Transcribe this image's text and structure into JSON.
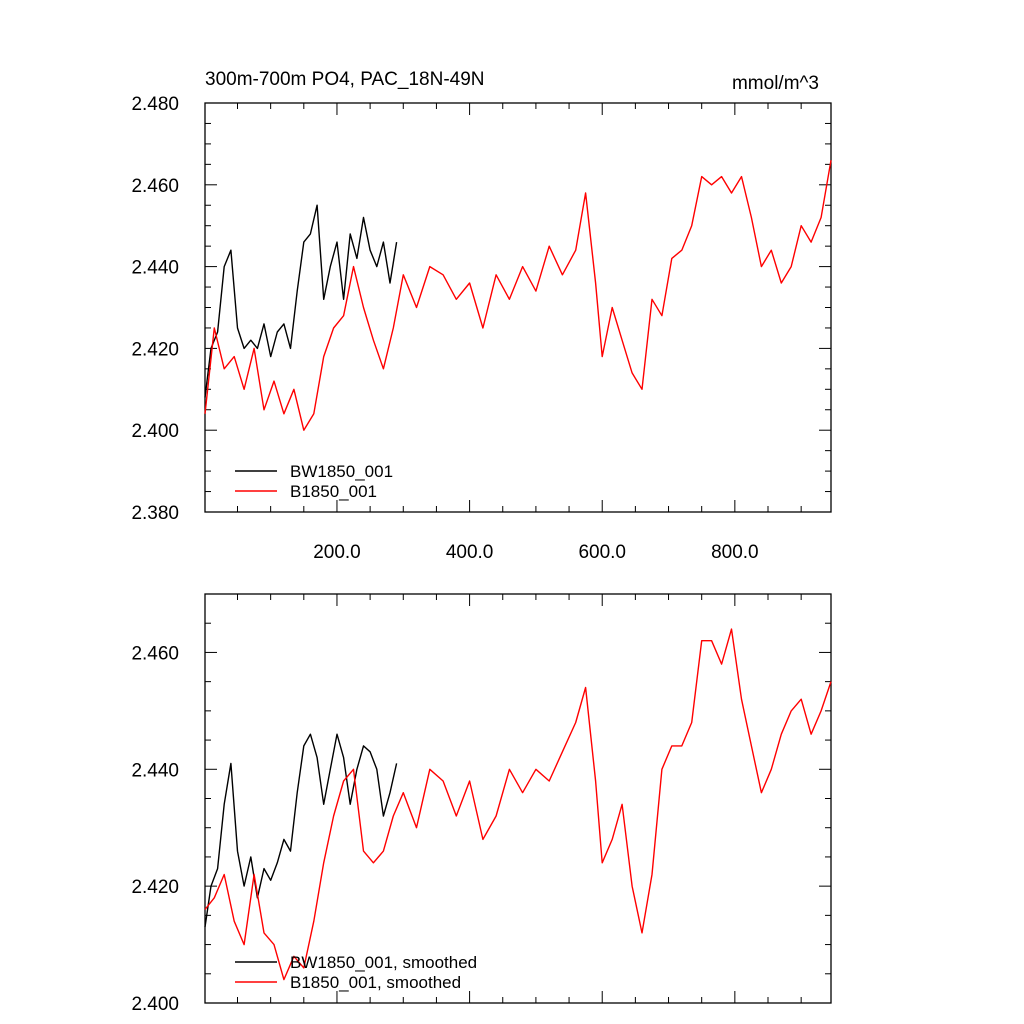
{
  "chart_data": [
    {
      "type": "line",
      "title": "300m-700m PO4, PAC_18N-49N",
      "units": "mmol/m^3",
      "xlim": [
        1,
        945
      ],
      "ylim": [
        2.38,
        2.48
      ],
      "x_ticks": [
        200,
        400,
        600,
        800
      ],
      "x_tick_labels": [
        "200.0",
        "400.0",
        "600.0",
        "800.0"
      ],
      "y_ticks": [
        2.38,
        2.4,
        2.42,
        2.44,
        2.46,
        2.48
      ],
      "y_tick_labels": [
        "2.380",
        "2.400",
        "2.420",
        "2.440",
        "2.460",
        "2.480"
      ],
      "legend_position": "bottom-left",
      "series": [
        {
          "name": "BW1850_001",
          "color": "#000000",
          "x": [
            1,
            10,
            20,
            30,
            40,
            50,
            60,
            70,
            80,
            90,
            100,
            110,
            120,
            130,
            140,
            150,
            160,
            170,
            180,
            190,
            200,
            210,
            220,
            230,
            240,
            250,
            260,
            270,
            280,
            290
          ],
          "y": [
            2.408,
            2.42,
            2.424,
            2.44,
            2.444,
            2.425,
            2.42,
            2.422,
            2.42,
            2.426,
            2.418,
            2.424,
            2.426,
            2.42,
            2.434,
            2.446,
            2.448,
            2.455,
            2.432,
            2.44,
            2.446,
            2.432,
            2.448,
            2.442,
            2.452,
            2.444,
            2.44,
            2.446,
            2.436,
            2.446
          ]
        },
        {
          "name": "B1850_001",
          "color": "#ff0000",
          "x": [
            1,
            15,
            30,
            45,
            60,
            75,
            90,
            105,
            120,
            135,
            150,
            165,
            180,
            195,
            210,
            225,
            240,
            255,
            270,
            285,
            300,
            320,
            340,
            360,
            380,
            400,
            420,
            440,
            460,
            480,
            500,
            520,
            540,
            560,
            575,
            590,
            600,
            615,
            630,
            645,
            660,
            675,
            690,
            705,
            720,
            735,
            750,
            765,
            780,
            795,
            810,
            825,
            840,
            855,
            870,
            885,
            900,
            915,
            930,
            945
          ],
          "y": [
            2.404,
            2.425,
            2.415,
            2.418,
            2.41,
            2.42,
            2.405,
            2.412,
            2.404,
            2.41,
            2.4,
            2.404,
            2.418,
            2.425,
            2.428,
            2.44,
            2.43,
            2.422,
            2.415,
            2.425,
            2.438,
            2.43,
            2.44,
            2.438,
            2.432,
            2.436,
            2.425,
            2.438,
            2.432,
            2.44,
            2.434,
            2.445,
            2.438,
            2.444,
            2.458,
            2.436,
            2.418,
            2.43,
            2.422,
            2.414,
            2.41,
            2.432,
            2.428,
            2.442,
            2.444,
            2.45,
            2.462,
            2.46,
            2.462,
            2.458,
            2.462,
            2.452,
            2.44,
            2.444,
            2.436,
            2.44,
            2.45,
            2.446,
            2.452,
            2.466
          ]
        }
      ]
    },
    {
      "type": "line",
      "title": "",
      "xlim": [
        1,
        945
      ],
      "ylim": [
        2.4,
        2.47
      ],
      "x_ticks": [
        200,
        400,
        600,
        800
      ],
      "x_tick_labels": [],
      "y_ticks": [
        2.4,
        2.42,
        2.44,
        2.46
      ],
      "y_tick_labels": [
        "2.400",
        "2.420",
        "2.440",
        "2.460"
      ],
      "legend_position": "bottom-left",
      "series": [
        {
          "name": "BW1850_001, smoothed",
          "color": "#000000",
          "x": [
            1,
            10,
            20,
            30,
            40,
            50,
            60,
            70,
            80,
            90,
            100,
            110,
            120,
            130,
            140,
            150,
            160,
            170,
            180,
            190,
            200,
            210,
            220,
            230,
            240,
            250,
            260,
            270,
            280,
            290
          ],
          "y": [
            2.413,
            2.42,
            2.423,
            2.434,
            2.441,
            2.426,
            2.42,
            2.425,
            2.418,
            2.423,
            2.421,
            2.424,
            2.428,
            2.426,
            2.436,
            2.444,
            2.446,
            2.442,
            2.434,
            2.44,
            2.446,
            2.442,
            2.434,
            2.44,
            2.444,
            2.443,
            2.44,
            2.432,
            2.436,
            2.441
          ]
        },
        {
          "name": "B1850_001, smoothed",
          "color": "#ff0000",
          "x": [
            1,
            15,
            30,
            45,
            60,
            75,
            90,
            105,
            120,
            135,
            150,
            165,
            180,
            195,
            210,
            225,
            240,
            255,
            270,
            285,
            300,
            320,
            340,
            360,
            380,
            400,
            420,
            440,
            460,
            480,
            500,
            520,
            540,
            560,
            575,
            590,
            600,
            615,
            630,
            645,
            660,
            675,
            690,
            705,
            720,
            735,
            750,
            765,
            780,
            795,
            810,
            825,
            840,
            855,
            870,
            885,
            900,
            915,
            930,
            945
          ],
          "y": [
            2.416,
            2.418,
            2.422,
            2.414,
            2.41,
            2.422,
            2.412,
            2.41,
            2.404,
            2.408,
            2.406,
            2.414,
            2.424,
            2.432,
            2.438,
            2.44,
            2.426,
            2.424,
            2.426,
            2.432,
            2.436,
            2.43,
            2.44,
            2.438,
            2.432,
            2.438,
            2.428,
            2.432,
            2.44,
            2.436,
            2.44,
            2.438,
            2.443,
            2.448,
            2.454,
            2.438,
            2.424,
            2.428,
            2.434,
            2.42,
            2.412,
            2.422,
            2.44,
            2.444,
            2.444,
            2.448,
            2.462,
            2.462,
            2.458,
            2.464,
            2.452,
            2.444,
            2.436,
            2.44,
            2.446,
            2.45,
            2.452,
            2.446,
            2.45,
            2.455
          ]
        }
      ]
    }
  ]
}
